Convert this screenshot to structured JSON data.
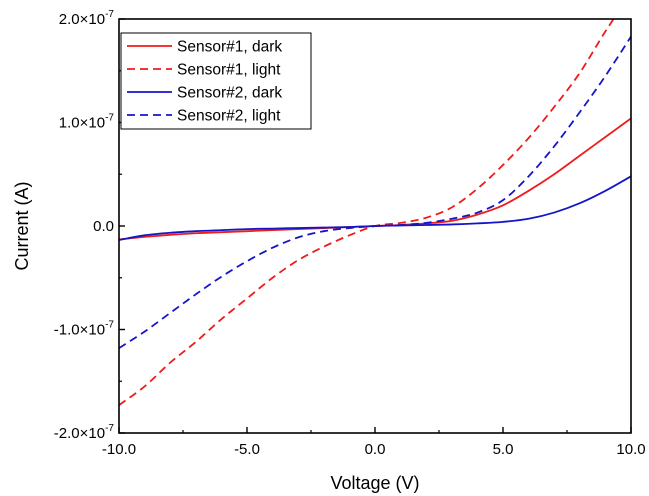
{
  "chart_data": {
    "type": "line",
    "title": "",
    "xlabel": "Voltage (V)",
    "ylabel": "Current (A)",
    "xlim": [
      -10,
      10
    ],
    "ylim": [
      -2e-07,
      2e-07
    ],
    "grid": false,
    "legend_position": "top-left",
    "x_ticks": [
      -10,
      -5,
      0,
      5,
      10
    ],
    "x_tick_labels": [
      "-10.0",
      "-5.0",
      "0.0",
      "5.0",
      "10.0"
    ],
    "y_ticks": [
      -2e-07,
      -1e-07,
      0,
      1e-07,
      2e-07
    ],
    "y_tick_labels": [
      {
        "mantissa": "-2.0×10",
        "exp": "-7"
      },
      {
        "mantissa": "-1.0×10",
        "exp": "-7"
      },
      {
        "mantissa": "0.0",
        "exp": ""
      },
      {
        "mantissa": "1.0×10",
        "exp": "-7"
      },
      {
        "mantissa": "2.0×10",
        "exp": "-7"
      }
    ],
    "x": [
      -10,
      -9,
      -8,
      -7,
      -6,
      -5,
      -4,
      -3,
      -2,
      -1,
      0,
      1,
      2,
      3,
      4,
      5,
      6,
      7,
      8,
      9,
      10
    ],
    "series": [
      {
        "name": "Sensor#1, dark",
        "color": "#ee1c1c",
        "dash": "solid",
        "values": [
          -1.3e-08,
          -1.05e-08,
          -8.5e-09,
          -7e-09,
          -6e-09,
          -5e-09,
          -4e-09,
          -3e-09,
          -2e-09,
          -1e-09,
          0,
          1e-09,
          2.5e-09,
          5e-09,
          1.1e-08,
          2e-08,
          3.4e-08,
          5e-08,
          6.8e-08,
          8.6e-08,
          1.04e-07
        ]
      },
      {
        "name": "Sensor#1, light",
        "color": "#ee1c1c",
        "dash": "dashed",
        "values": [
          -1.73e-07,
          -1.55e-07,
          -1.32e-07,
          -1.12e-07,
          -9e-08,
          -7e-08,
          -5e-08,
          -3.3e-08,
          -2e-08,
          -9e-09,
          0,
          3e-09,
          8e-09,
          1.8e-08,
          3.6e-08,
          5.9e-08,
          8.5e-08,
          1.15e-07,
          1.48e-07,
          1.88e-07,
          2.25e-07
        ]
      },
      {
        "name": "Sensor#2, dark",
        "color": "#1515c8",
        "dash": "solid",
        "values": [
          -1.35e-08,
          -9e-09,
          -6.5e-09,
          -5e-09,
          -4e-09,
          -3e-09,
          -2.5e-09,
          -2e-09,
          -1.5e-09,
          -1e-09,
          0,
          5e-10,
          1e-09,
          1.5e-09,
          2.5e-09,
          4e-09,
          7e-09,
          1.3e-08,
          2.2e-08,
          3.4e-08,
          4.8e-08
        ]
      },
      {
        "name": "Sensor#2, light",
        "color": "#1515c8",
        "dash": "dashed",
        "values": [
          -1.18e-07,
          -1.02e-07,
          -8.4e-08,
          -6.6e-08,
          -4.9e-08,
          -3.4e-08,
          -2.1e-08,
          -1.1e-08,
          -5e-09,
          -2e-09,
          0,
          1e-09,
          3e-09,
          7e-09,
          1.3e-08,
          2.5e-08,
          4.8e-08,
          7.7e-08,
          1.1e-07,
          1.45e-07,
          1.83e-07
        ]
      }
    ]
  }
}
